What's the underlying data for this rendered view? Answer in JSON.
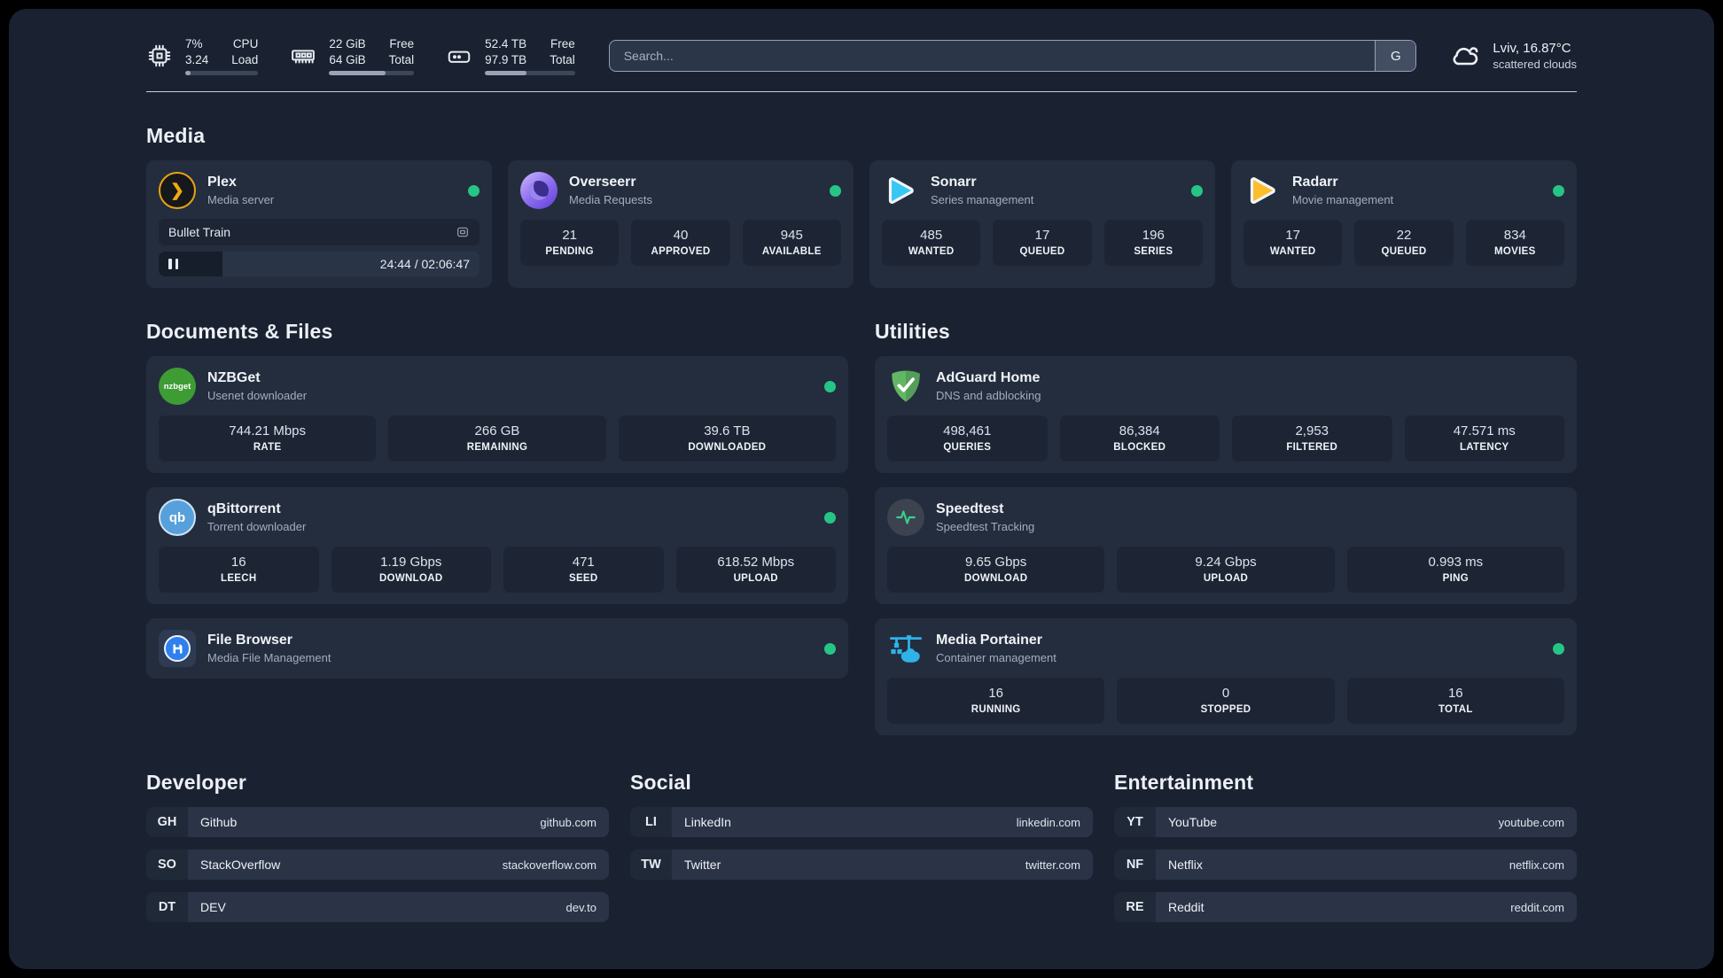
{
  "colors": {
    "status_online": "#25c685",
    "plex_gold": "#e7a413",
    "sonarr_blue": "#38c6f4",
    "radarr_yellow": "#fcbe2d",
    "background": "#1a2231"
  },
  "header": {
    "stats": [
      {
        "icon": "cpu-icon",
        "values": [
          "7%",
          "3.24"
        ],
        "labels": [
          "CPU",
          "Load"
        ],
        "progress_pct": 7
      },
      {
        "icon": "ram-icon",
        "values": [
          "22 GiB",
          "64 GiB"
        ],
        "labels": [
          "Free",
          "Total"
        ],
        "progress_pct": 66
      },
      {
        "icon": "disk-icon",
        "values": [
          "52.4 TB",
          "97.9 TB"
        ],
        "labels": [
          "Free",
          "Total"
        ],
        "progress_pct": 46
      }
    ],
    "search": {
      "placeholder": "Search...",
      "button_label": "G"
    },
    "weather": {
      "location": "Lviv, 16.87°C",
      "condition": "scattered clouds"
    }
  },
  "media": {
    "title": "Media",
    "plex": {
      "name": "Plex",
      "desc": "Media server",
      "logo_glyph": "❯",
      "now_playing": {
        "title": "Bullet Train",
        "time": "24:44 / 02:06:47",
        "progress_pct": 20
      }
    },
    "overseerr": {
      "name": "Overseerr",
      "desc": "Media Requests",
      "stats": [
        {
          "value": "21",
          "label": "PENDING"
        },
        {
          "value": "40",
          "label": "APPROVED"
        },
        {
          "value": "945",
          "label": "AVAILABLE"
        }
      ]
    },
    "sonarr": {
      "name": "Sonarr",
      "desc": "Series management",
      "stats": [
        {
          "value": "485",
          "label": "WANTED"
        },
        {
          "value": "17",
          "label": "QUEUED"
        },
        {
          "value": "196",
          "label": "SERIES"
        }
      ]
    },
    "radarr": {
      "name": "Radarr",
      "desc": "Movie management",
      "stats": [
        {
          "value": "17",
          "label": "WANTED"
        },
        {
          "value": "22",
          "label": "QUEUED"
        },
        {
          "value": "834",
          "label": "MOVIES"
        }
      ]
    }
  },
  "documents": {
    "title": "Documents & Files",
    "nzbget": {
      "name": "NZBGet",
      "desc": "Usenet downloader",
      "logo_text": "nzbget",
      "stats": [
        {
          "value": "744.21 Mbps",
          "label": "RATE"
        },
        {
          "value": "266 GB",
          "label": "REMAINING"
        },
        {
          "value": "39.6 TB",
          "label": "DOWNLOADED"
        }
      ]
    },
    "qbittorrent": {
      "name": "qBittorrent",
      "desc": "Torrent downloader",
      "logo_text": "qb",
      "stats": [
        {
          "value": "16",
          "label": "LEECH"
        },
        {
          "value": "1.19 Gbps",
          "label": "DOWNLOAD"
        },
        {
          "value": "471",
          "label": "SEED"
        },
        {
          "value": "618.52 Mbps",
          "label": "UPLOAD"
        }
      ]
    },
    "filebrowser": {
      "name": "File Browser",
      "desc": "Media File Management"
    }
  },
  "utilities": {
    "title": "Utilities",
    "adguard": {
      "name": "AdGuard Home",
      "desc": "DNS and adblocking",
      "stats": [
        {
          "value": "498,461",
          "label": "QUERIES"
        },
        {
          "value": "86,384",
          "label": "BLOCKED"
        },
        {
          "value": "2,953",
          "label": "FILTERED"
        },
        {
          "value": "47.571 ms",
          "label": "LATENCY"
        }
      ]
    },
    "speedtest": {
      "name": "Speedtest",
      "desc": "Speedtest Tracking",
      "stats": [
        {
          "value": "9.65 Gbps",
          "label": "DOWNLOAD"
        },
        {
          "value": "9.24 Gbps",
          "label": "UPLOAD"
        },
        {
          "value": "0.993 ms",
          "label": "PING"
        }
      ]
    },
    "portainer": {
      "name": "Media Portainer",
      "desc": "Container management",
      "stats": [
        {
          "value": "16",
          "label": "RUNNING"
        },
        {
          "value": "0",
          "label": "STOPPED"
        },
        {
          "value": "16",
          "label": "TOTAL"
        }
      ]
    }
  },
  "bookmarks": [
    {
      "title": "Developer",
      "links": [
        {
          "abbr": "GH",
          "name": "Github",
          "url": "github.com"
        },
        {
          "abbr": "SO",
          "name": "StackOverflow",
          "url": "stackoverflow.com"
        },
        {
          "abbr": "DT",
          "name": "DEV",
          "url": "dev.to"
        }
      ]
    },
    {
      "title": "Social",
      "links": [
        {
          "abbr": "LI",
          "name": "LinkedIn",
          "url": "linkedin.com"
        },
        {
          "abbr": "TW",
          "name": "Twitter",
          "url": "twitter.com"
        }
      ]
    },
    {
      "title": "Entertainment",
      "links": [
        {
          "abbr": "YT",
          "name": "YouTube",
          "url": "youtube.com"
        },
        {
          "abbr": "NF",
          "name": "Netflix",
          "url": "netflix.com"
        },
        {
          "abbr": "RE",
          "name": "Reddit",
          "url": "reddit.com"
        }
      ]
    }
  ]
}
